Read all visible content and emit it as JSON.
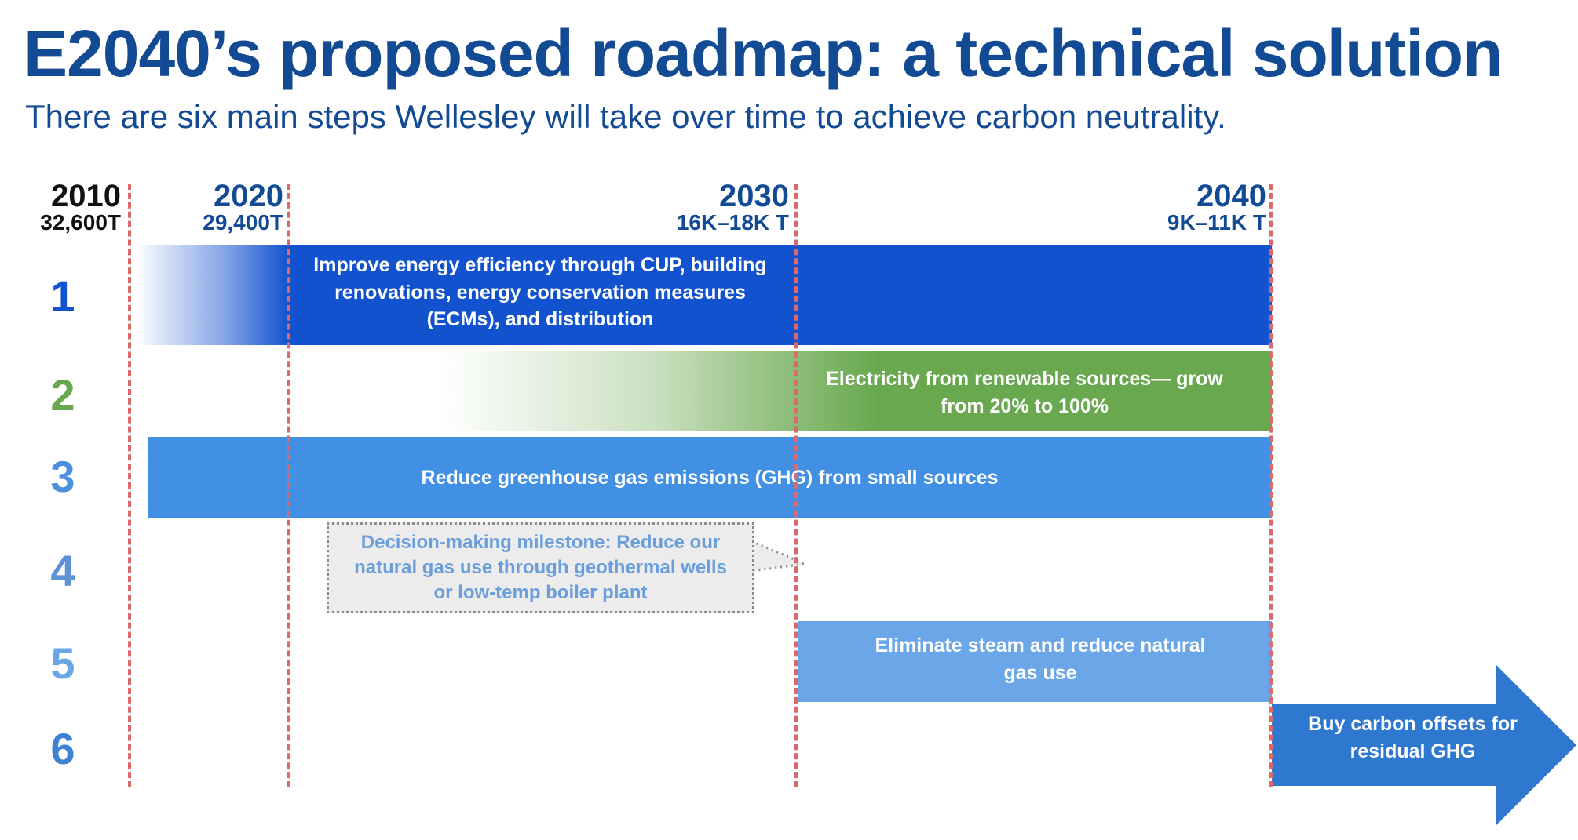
{
  "title": "E2040’s proposed roadmap: a technical solution",
  "subtitle": "There are six main steps Wellesley will take over time to achieve carbon neutrality.",
  "milestones": [
    {
      "year": "2010",
      "emissions": "32,600T"
    },
    {
      "year": "2020",
      "emissions": "29,400T"
    },
    {
      "year": "2030",
      "emissions": "16K–18K T"
    },
    {
      "year": "2040",
      "emissions": "9K–11K T"
    }
  ],
  "steps": [
    {
      "number": "1",
      "label": "Improve energy efficiency through CUP, building renovations, energy conservation measures (ECMs), and distribution"
    },
    {
      "number": "2",
      "label": "Electricity from renewable sources— grow from 20% to 100%"
    },
    {
      "number": "3",
      "label": "Reduce greenhouse gas emissions (GHG) from small sources"
    },
    {
      "number": "4",
      "label": "Decision-making milestone: Reduce our natural gas use through geothermal wells or low-temp boiler plant"
    },
    {
      "number": "5",
      "label": "Eliminate steam and reduce natural gas use"
    },
    {
      "number": "6",
      "label": "Buy carbon offsets for residual GHG"
    }
  ],
  "colors": {
    "title": "#134a94",
    "year_2010": "#111111",
    "year_other": "#134a94",
    "marker": "#d9696b",
    "step1": "#1352cf",
    "step2": "#69a84f",
    "step3": "#4290e3",
    "step4_text": "#6a9edc",
    "step5": "#6ba6e8",
    "step6": "#2f78d0",
    "number_1": "#1352cf",
    "number_2": "#69a84f",
    "number_3": "#4a90df",
    "number_4": "#5e92d6",
    "number_5": "#6aa6e6",
    "number_6": "#3e82d6"
  }
}
